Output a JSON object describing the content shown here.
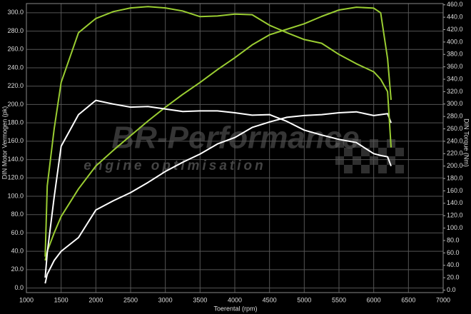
{
  "chart_data": {
    "type": "line",
    "x_label": "Toerental (rpm)",
    "y_label": "DIN Motor Vermogen (pk)",
    "y2_label": "DIN Torque (Nm)",
    "watermark": "BR-Performance",
    "watermark_subtitle": "engine optimisation",
    "grid": true,
    "x": [
      1270,
      1300,
      1400,
      1500,
      1750,
      2000,
      2250,
      2500,
      2750,
      3000,
      3250,
      3500,
      3750,
      4000,
      4250,
      4500,
      4750,
      5000,
      5250,
      5500,
      5750,
      6000,
      6100,
      6200,
      6250
    ],
    "xlim": [
      1000,
      7000
    ],
    "xticks": [
      1000,
      1500,
      2000,
      2500,
      3000,
      3500,
      4000,
      4500,
      5000,
      5500,
      6000,
      6500,
      7000
    ],
    "ylim": [
      -5,
      310
    ],
    "yticks": [
      {
        "value": 0,
        "label": "0.0"
      },
      {
        "value": 20,
        "label": "20.0"
      },
      {
        "value": 40,
        "label": "40.0"
      },
      {
        "value": 60,
        "label": "60.0"
      },
      {
        "value": 80,
        "label": "80.0"
      },
      {
        "value": 100,
        "label": "100.0"
      },
      {
        "value": 120,
        "label": "120.0"
      },
      {
        "value": 140,
        "label": "140.0"
      },
      {
        "value": 160,
        "label": "160.0"
      },
      {
        "value": 180,
        "label": "180.0"
      },
      {
        "value": 200,
        "label": "200.0"
      },
      {
        "value": 220,
        "label": "220.0"
      },
      {
        "value": 240,
        "label": "240.0"
      },
      {
        "value": 260,
        "label": "260.0"
      },
      {
        "value": 280,
        "label": "280.0"
      },
      {
        "value": 300,
        "label": "300.0"
      }
    ],
    "y2lim": [
      -4,
      462
    ],
    "y2ticks": [
      {
        "value": 0,
        "label": "0.0"
      },
      {
        "value": 20,
        "label": "20.0"
      },
      {
        "value": 40,
        "label": "40.0"
      },
      {
        "value": 60,
        "label": "60.0"
      },
      {
        "value": 80,
        "label": "80.0"
      },
      {
        "value": 100,
        "label": "100.0"
      },
      {
        "value": 120,
        "label": "120.0"
      },
      {
        "value": 140,
        "label": "140.0"
      },
      {
        "value": 160,
        "label": "160.0"
      },
      {
        "value": 180,
        "label": "180.0"
      },
      {
        "value": 200,
        "label": "200.0"
      },
      {
        "value": 220,
        "label": "220.0"
      },
      {
        "value": 240,
        "label": "240.0"
      },
      {
        "value": 260,
        "label": "260.0"
      },
      {
        "value": 280,
        "label": "280.0"
      },
      {
        "value": 300,
        "label": "300.0"
      },
      {
        "value": 320,
        "label": "320.0"
      },
      {
        "value": 340,
        "label": "340.0"
      },
      {
        "value": 360,
        "label": "360.0"
      },
      {
        "value": 380,
        "label": "380.0"
      },
      {
        "value": 400,
        "label": "400.0"
      },
      {
        "value": 420,
        "label": "420.0"
      },
      {
        "value": 440,
        "label": "440.0"
      },
      {
        "value": 460,
        "label": "460.0"
      }
    ],
    "series": [
      {
        "color": "#9acd32",
        "axis": "y",
        "values": [
          30,
          40,
          60,
          78,
          108,
          133,
          150,
          166,
          182,
          197,
          211,
          224,
          238,
          251,
          265,
          276,
          282,
          288,
          296,
          303,
          306,
          305,
          300,
          250,
          205
        ]
      },
      {
        "color": "#ffffff",
        "axis": "y",
        "values": [
          5,
          15,
          30,
          40,
          55,
          85,
          95,
          104,
          115,
          127,
          137,
          146,
          157,
          164,
          175,
          181,
          186,
          188,
          189,
          191,
          192,
          188,
          189,
          190,
          180
        ]
      },
      {
        "color": "#9acd32",
        "axis": "y2",
        "values": [
          54,
          168,
          260,
          335,
          415,
          438,
          449,
          455,
          457,
          455,
          450,
          441,
          442,
          445,
          444,
          427,
          415,
          404,
          398,
          380,
          365,
          352,
          340,
          320,
          230
        ]
      },
      {
        "color": "#ffffff",
        "axis": "y2",
        "values": [
          20,
          60,
          150,
          232,
          283,
          306,
          300,
          295,
          296,
          292,
          288,
          289,
          289,
          286,
          282,
          283,
          272,
          258,
          250,
          243,
          238,
          220,
          217,
          215,
          200
        ]
      }
    ]
  }
}
